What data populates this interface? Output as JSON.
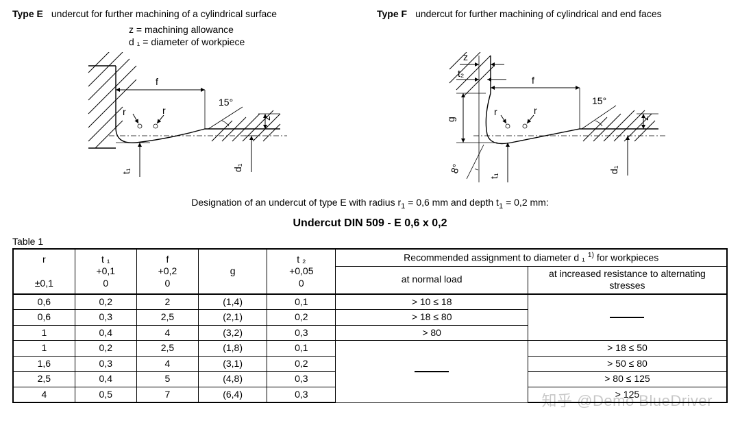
{
  "typeE": {
    "label": "Type E",
    "desc": "undercut for further machining of a cylindrical surface"
  },
  "typeF": {
    "label": "Type F",
    "desc": "undercut for further machining of cylindrical and end faces"
  },
  "legend": {
    "z": "z  = machining allowance",
    "d1": "d ₁ = diameter of workpiece"
  },
  "diagram": {
    "labels": {
      "f": "f",
      "r": "r",
      "t1": "t₁",
      "d1": "d₁",
      "z": "z",
      "angle15": "15°",
      "t2": "t₂",
      "g": "g",
      "angle8": "8°"
    }
  },
  "designation": {
    "line1_a": "Designation of an undercut of type E with radius r",
    "line1_b": " = 0,6 mm and depth t",
    "line1_c": " = 0,2 mm:",
    "line2": "Undercut DIN 509 - E 0,6 x 0,2"
  },
  "table": {
    "caption": "Table 1",
    "header": {
      "r_top": "r",
      "r_bot": "±0,1",
      "t1_top": "t ₁",
      "t1_mid": "+0,1",
      "t1_bot": "0",
      "f_top": "f",
      "f_mid": "+0,2",
      "f_bot": "0",
      "g": "g",
      "t2_top": "t ₂",
      "t2_mid": "+0,05",
      "t2_bot": "0",
      "rec_top_a": "Recommended assignment to diameter d ₁ ",
      "rec_top_b": " for workpieces",
      "rec_sup": "1)",
      "rec_left": "at normal load",
      "rec_right": "at increased resistance to alternating stresses"
    },
    "rows": [
      {
        "r": "0,6",
        "t1": "0,2",
        "f": "2",
        "g": "(1,4)",
        "t2": "0,1",
        "nl": "> 10    ≤  18",
        "al": ""
      },
      {
        "r": "0,6",
        "t1": "0,3",
        "f": "2,5",
        "g": "(2,1)",
        "t2": "0,2",
        "nl": "> 18    ≤  80",
        "al": "dash"
      },
      {
        "r": "1",
        "t1": "0,4",
        "f": "4",
        "g": "(3,2)",
        "t2": "0,3",
        "nl": "> 80",
        "al": ""
      },
      {
        "r": "1",
        "t1": "0,2",
        "f": "2,5",
        "g": "(1,8)",
        "t2": "0,1",
        "nl": "dash",
        "al": ">  18    ≤  50"
      },
      {
        "r": "1,6",
        "t1": "0,3",
        "f": "4",
        "g": "(3,1)",
        "t2": "0,2",
        "nl": "",
        "al": ">  50    ≤  80"
      },
      {
        "r": "2,5",
        "t1": "0,4",
        "f": "5",
        "g": "(4,8)",
        "t2": "0,3",
        "nl": "",
        "al": ">  80    ≤ 125"
      },
      {
        "r": "4",
        "t1": "0,5",
        "f": "7",
        "g": "(6,4)",
        "t2": "0,3",
        "nl": "",
        "al": "> 125"
      }
    ],
    "col_widths": [
      "90",
      "90",
      "90",
      "100",
      "100",
      "280",
      "290"
    ]
  },
  "watermark": "知乎 @Demo BlueDriver",
  "colors": {
    "stroke": "#000000",
    "bg": "#ffffff"
  }
}
